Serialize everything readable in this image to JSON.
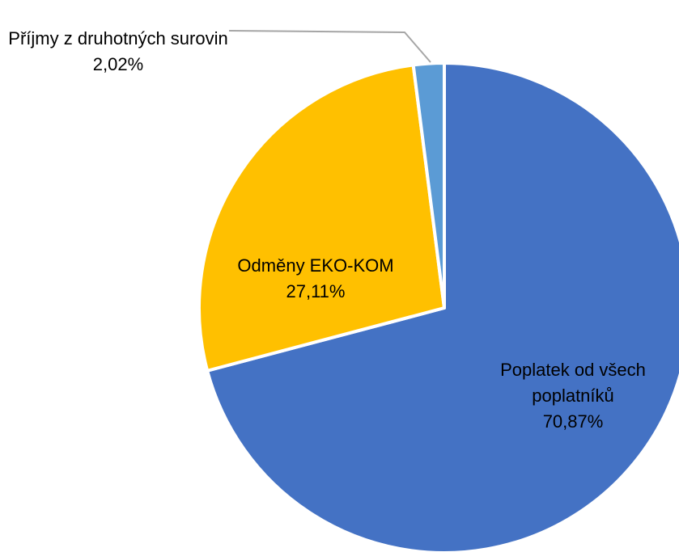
{
  "chart_data": {
    "type": "pie",
    "categories": [
      "Poplatek od všech poplatníků",
      "Odměny EKO-KOM",
      "Příjmy z druhotných surovin"
    ],
    "values": [
      70.87,
      27.11,
      2.02
    ],
    "value_labels": [
      "70,87%",
      "27,11%",
      "2,02%"
    ],
    "colors": [
      "#4472c4",
      "#ffc000",
      "#5b9bd5"
    ]
  }
}
